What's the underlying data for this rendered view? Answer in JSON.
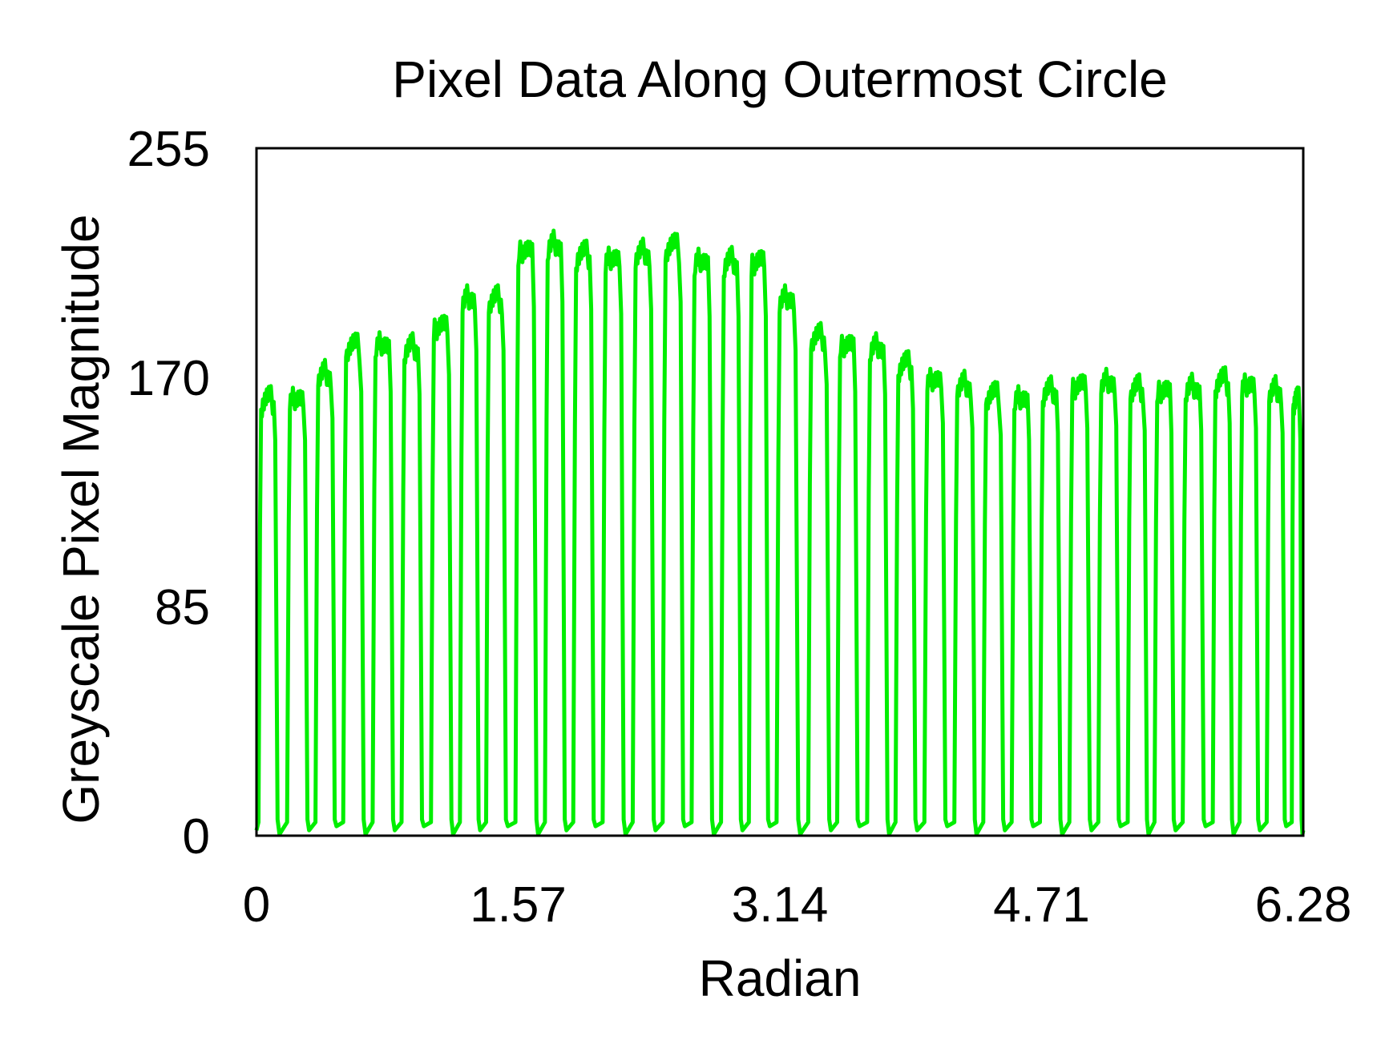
{
  "chart_data": {
    "type": "line",
    "title": "Pixel Data Along Outermost Circle",
    "xlabel": "Radian",
    "ylabel": "Greyscale Pixel Magnitude",
    "xlim": [
      0,
      6.28
    ],
    "ylim": [
      0,
      255
    ],
    "xticks": [
      "0",
      "1.57",
      "3.14",
      "4.71",
      "6.28"
    ],
    "xtick_values": [
      0,
      1.57,
      3.14,
      4.71,
      6.28
    ],
    "yticks": [
      "0",
      "85",
      "170",
      "255"
    ],
    "ytick_values": [
      0,
      85,
      170,
      255
    ],
    "grid": false,
    "legend": "none",
    "series": [
      {
        "color": "#00ee00",
        "cycle_count": 37,
        "low_value": 2,
        "cycle_peaks": [
          [
            0.06,
            163
          ],
          [
            0.25,
            163
          ],
          [
            0.41,
            172
          ],
          [
            0.58,
            183
          ],
          [
            0.76,
            183
          ],
          [
            0.93,
            182
          ],
          [
            1.11,
            190
          ],
          [
            1.28,
            200
          ],
          [
            1.43,
            200
          ],
          [
            1.62,
            218
          ],
          [
            1.79,
            220
          ],
          [
            1.96,
            217
          ],
          [
            2.14,
            215
          ],
          [
            2.32,
            217
          ],
          [
            2.5,
            220
          ],
          [
            2.67,
            214
          ],
          [
            2.85,
            214
          ],
          [
            3.01,
            214
          ],
          [
            3.18,
            200
          ],
          [
            3.38,
            186
          ],
          [
            3.54,
            183
          ],
          [
            3.73,
            182
          ],
          [
            3.89,
            176
          ],
          [
            4.07,
            170
          ],
          [
            4.25,
            168
          ],
          [
            4.42,
            165
          ],
          [
            4.59,
            163
          ],
          [
            4.76,
            166
          ],
          [
            4.94,
            168
          ],
          [
            5.11,
            169
          ],
          [
            5.29,
            167
          ],
          [
            5.44,
            166
          ],
          [
            5.62,
            167
          ],
          [
            5.8,
            170
          ],
          [
            5.95,
            168
          ],
          [
            6.12,
            166
          ],
          [
            6.26,
            163
          ]
        ]
      }
    ]
  }
}
